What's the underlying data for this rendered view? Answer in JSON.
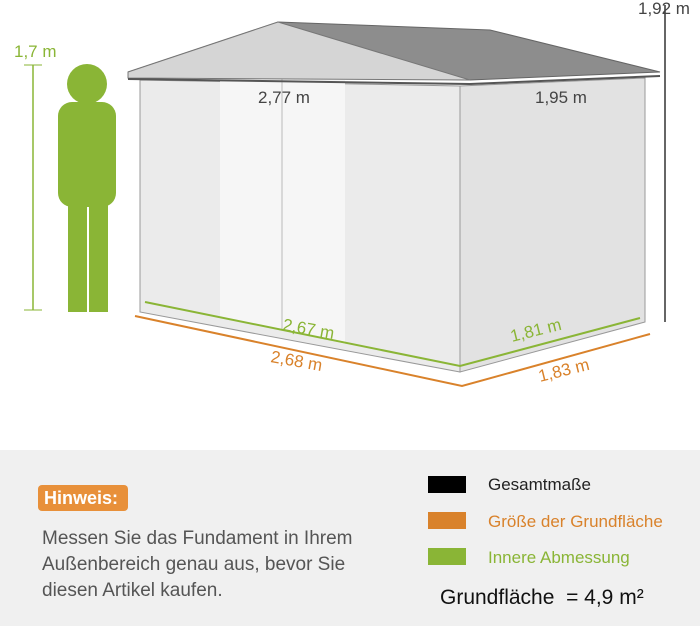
{
  "dimensions": {
    "total_height": "1,92 m",
    "person_height": "1,7 m",
    "roof_width": "2,77 m",
    "roof_depth": "1,95 m",
    "inner_width": "2,67 m",
    "inner_depth": "1,81 m",
    "base_width": "2,68 m",
    "base_depth": "1,83 m"
  },
  "note": {
    "title": "Hinweis:",
    "lines": [
      "Messen Sie das Fundament in Ihrem",
      "Außenbereich genau aus, bevor Sie",
      "diesen Artikel kaufen."
    ]
  },
  "legend": [
    "Gesamtmaße",
    "Größe der Grundfläche",
    "Innere Abmessung"
  ],
  "area": "Grundfläche  = 4,9 m²"
}
